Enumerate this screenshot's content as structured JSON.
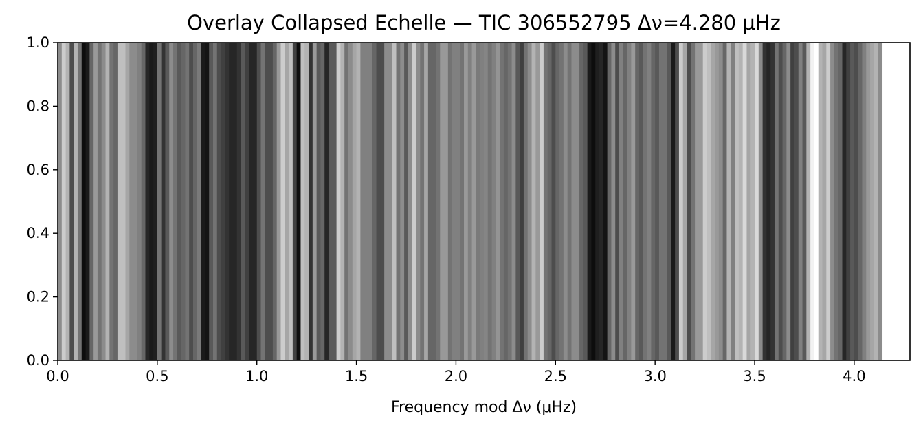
{
  "chart_data": {
    "type": "heatmap",
    "title": "Overlay Collapsed Echelle — TIC 306552795   Δν=4.280 μHz",
    "xlabel": "Frequency mod Δν (μHz)",
    "ylabel": "",
    "xlim": [
      0,
      4.28
    ],
    "ylim": [
      0,
      1
    ],
    "xticks": [
      "0.0",
      "0.5",
      "1.0",
      "1.5",
      "2.0",
      "2.5",
      "3.0",
      "3.5",
      "4.0"
    ],
    "yticks": [
      "0.0",
      "0.2",
      "0.4",
      "0.6",
      "0.8",
      "1.0"
    ],
    "colormap": "gray",
    "colormap_low": "#000000",
    "colormap_high": "#ffffff",
    "grid": false,
    "bin_width": 0.02,
    "intensity": [
      0.55,
      0.8,
      0.7,
      0.3,
      0.7,
      0.45,
      0.05,
      0.1,
      0.4,
      0.6,
      0.45,
      0.55,
      0.7,
      0.45,
      0.4,
      0.75,
      0.75,
      0.65,
      0.55,
      0.55,
      0.5,
      0.4,
      0.15,
      0.1,
      0.12,
      0.45,
      0.2,
      0.35,
      0.55,
      0.45,
      0.35,
      0.4,
      0.45,
      0.3,
      0.4,
      0.48,
      0.1,
      0.08,
      0.35,
      0.45,
      0.3,
      0.25,
      0.2,
      0.15,
      0.15,
      0.2,
      0.35,
      0.25,
      0.15,
      0.15,
      0.3,
      0.45,
      0.3,
      0.3,
      0.4,
      0.6,
      0.8,
      0.65,
      0.75,
      0.25,
      0.05,
      0.75,
      0.7,
      0.2,
      0.6,
      0.35,
      0.4,
      0.15,
      0.35,
      0.35,
      0.8,
      0.7,
      0.45,
      0.55,
      0.65,
      0.7,
      0.5,
      0.5,
      0.5,
      0.4,
      0.3,
      0.3,
      0.55,
      0.55,
      0.75,
      0.45,
      0.55,
      0.35,
      0.55,
      0.8,
      0.55,
      0.45,
      0.65,
      0.4,
      0.4,
      0.45,
      0.6,
      0.6,
      0.45,
      0.5,
      0.5,
      0.45,
      0.6,
      0.5,
      0.6,
      0.48,
      0.5,
      0.52,
      0.45,
      0.5,
      0.58,
      0.45,
      0.4,
      0.45,
      0.55,
      0.35,
      0.25,
      0.45,
      0.55,
      0.7,
      0.6,
      0.8,
      0.45,
      0.4,
      0.3,
      0.4,
      0.45,
      0.55,
      0.45,
      0.55,
      0.55,
      0.4,
      0.35,
      0.1,
      0.05,
      0.12,
      0.15,
      0.08,
      0.4,
      0.55,
      0.3,
      0.5,
      0.4,
      0.5,
      0.6,
      0.4,
      0.35,
      0.45,
      0.5,
      0.4,
      0.35,
      0.45,
      0.45,
      0.35,
      0.1,
      0.3,
      0.8,
      0.65,
      0.3,
      0.45,
      0.6,
      0.6,
      0.8,
      0.75,
      0.65,
      0.6,
      0.55,
      0.4,
      0.7,
      0.5,
      0.75,
      0.7,
      0.85,
      0.65,
      0.7,
      0.85,
      0.55,
      0.2,
      0.15,
      0.2,
      0.45,
      0.3,
      0.4,
      0.55,
      0.25,
      0.3,
      0.5,
      0.35,
      0.7,
      0.95,
      1.0,
      0.7,
      0.65,
      0.8,
      0.55,
      0.45,
      0.4,
      0.15,
      0.25,
      0.35,
      0.3,
      0.4,
      0.5,
      0.6,
      0.65,
      0.7,
      0.55
    ]
  }
}
